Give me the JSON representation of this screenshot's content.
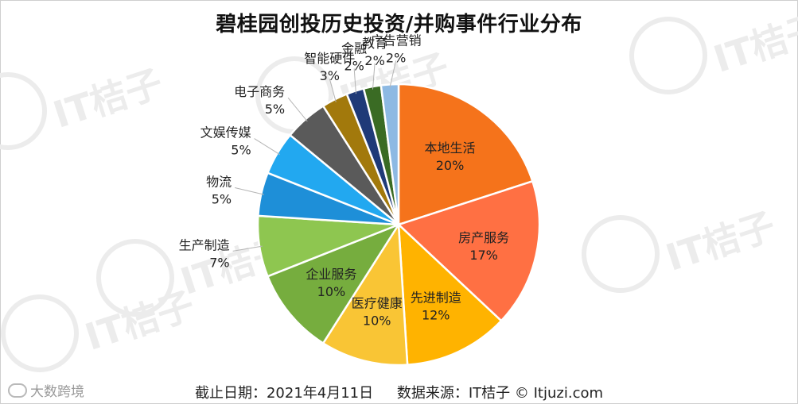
{
  "chart_data": {
    "type": "pie",
    "title": "碧桂园创投历史投资/并购事件行业分布",
    "slices": [
      {
        "label": "本地生活",
        "value": 20,
        "pct": "20%",
        "color": "#F5731B"
      },
      {
        "label": "房产服务",
        "value": 17,
        "pct": "17%",
        "color": "#FF7043"
      },
      {
        "label": "先进制造",
        "value": 12,
        "pct": "12%",
        "color": "#FFB300"
      },
      {
        "label": "医疗健康",
        "value": 10,
        "pct": "10%",
        "color": "#F9C535"
      },
      {
        "label": "企业服务",
        "value": 10,
        "pct": "10%",
        "color": "#76AD3E"
      },
      {
        "label": "生产制造",
        "value": 7,
        "pct": "7%",
        "color": "#8EC650"
      },
      {
        "label": "物流",
        "value": 5,
        "pct": "5%",
        "color": "#1E8FD8"
      },
      {
        "label": "文娱传媒",
        "value": 5,
        "pct": "5%",
        "color": "#22A8F0"
      },
      {
        "label": "电子商务",
        "value": 5,
        "pct": "5%",
        "color": "#5A5A5A"
      },
      {
        "label": "智能硬件",
        "value": 3,
        "pct": "3%",
        "color": "#A2790C"
      },
      {
        "label": "金融",
        "value": 2,
        "pct": "2%",
        "color": "#1F3A78"
      },
      {
        "label": "教育",
        "value": 2,
        "pct": "2%",
        "color": "#3A6B24"
      },
      {
        "label": "广告营销",
        "value": 2,
        "pct": "2%",
        "color": "#8DB9E3"
      }
    ]
  },
  "footer": {
    "date_text": "截止日期：2021年4月11日",
    "source_text": "数据来源：IT桔子 © Itjuzi.com"
  },
  "watermark": {
    "text": "IT桔子",
    "brand": "大数跨境"
  }
}
